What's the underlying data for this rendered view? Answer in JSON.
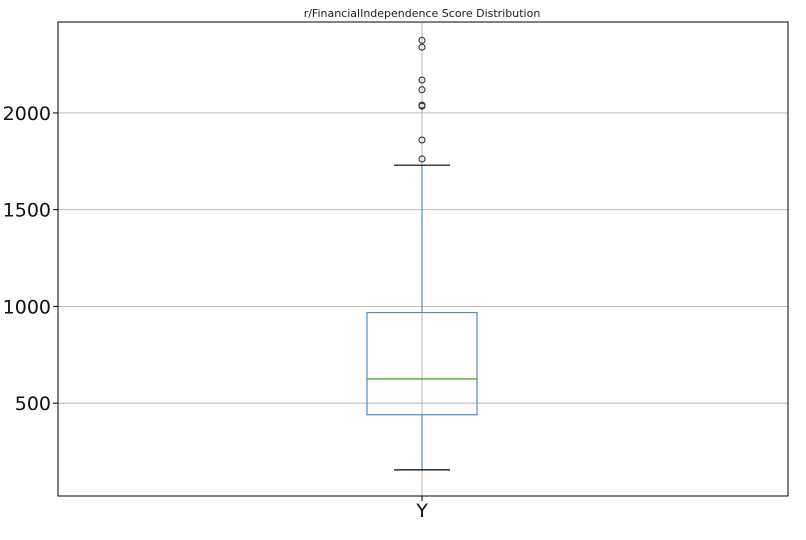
{
  "chart_data": {
    "type": "box",
    "title": "r/FinancialIndependence Score Distribution",
    "xlabel": "",
    "ylabel": "",
    "categories": [
      "Y"
    ],
    "ylim": [
      20,
      2470
    ],
    "yticks": [
      500,
      1000,
      1500,
      2000
    ],
    "ytick_labels": [
      "500",
      "1000",
      "1500",
      "2000"
    ],
    "grid": true,
    "box": {
      "whisker_low": 155,
      "q1": 440,
      "median": 625,
      "q3": 968,
      "whisker_high": 1730,
      "outliers": [
        1762,
        1860,
        2035,
        2040,
        2120,
        2170,
        2340,
        2375
      ]
    },
    "colors": {
      "box": "#4c8fc9",
      "median": "#5aa63a",
      "whisker_cap": "#000000",
      "grid": "#b0b0b0",
      "flier": "#333333"
    }
  }
}
